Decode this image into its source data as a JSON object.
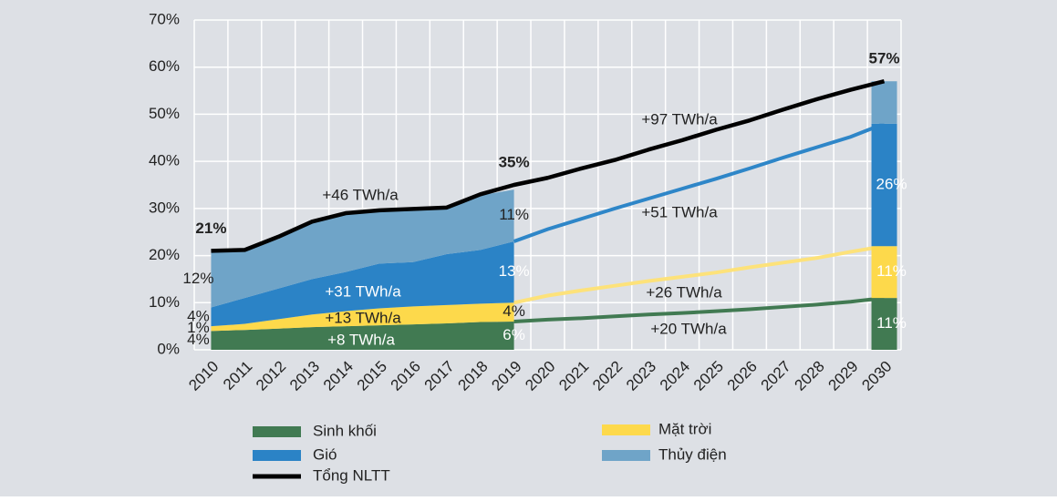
{
  "chart_data": {
    "type": "stacked_area_projection",
    "categories": [
      "2010",
      "2011",
      "2012",
      "2013",
      "2014",
      "2015",
      "2016",
      "2017",
      "2018",
      "2019",
      "2020",
      "2021",
      "2022",
      "2023",
      "2024",
      "2025",
      "2026",
      "2027",
      "2028",
      "2029",
      "2030"
    ],
    "ylim": [
      0,
      70
    ],
    "yticks": [
      {
        "value": 0,
        "label": "0%"
      },
      {
        "value": 10,
        "label": "10%"
      },
      {
        "value": 20,
        "label": "20%"
      },
      {
        "value": 30,
        "label": "30%"
      },
      {
        "value": 40,
        "label": "40%"
      },
      {
        "value": 50,
        "label": "50%"
      },
      {
        "value": 60,
        "label": "60%"
      },
      {
        "value": 70,
        "label": "70%"
      }
    ],
    "grid": true,
    "series": [
      {
        "name": "Sinh khối",
        "color": "#417a52",
        "values": [
          4,
          4.2,
          4.5,
          4.8,
          5,
          5.2,
          5.4,
          5.6,
          5.9,
          6,
          6.4,
          6.7,
          7.1,
          7.5,
          7.8,
          8.2,
          8.6,
          9.1,
          9.6,
          10.2,
          11
        ],
        "value_labels": [
          "4%",
          null,
          null,
          null,
          null,
          null,
          null,
          null,
          null,
          "6%",
          null,
          null,
          null,
          null,
          null,
          null,
          null,
          null,
          null,
          null,
          "11%"
        ]
      },
      {
        "name": "Mặt trời",
        "color": "#fdd94b",
        "values": [
          1,
          1.3,
          2,
          2.7,
          3.2,
          3.6,
          3.8,
          3.9,
          3.9,
          4,
          5.1,
          5.9,
          6.5,
          7.1,
          7.7,
          8.2,
          8.9,
          9.4,
          9.9,
          10.6,
          11
        ],
        "value_labels": [
          "1%",
          null,
          null,
          null,
          null,
          null,
          null,
          null,
          null,
          "4%",
          null,
          null,
          null,
          null,
          null,
          null,
          null,
          null,
          null,
          null,
          "11%"
        ]
      },
      {
        "name": "Gió",
        "color": "#2b83c6",
        "values": [
          4,
          5.5,
          6.5,
          7.5,
          8.3,
          9.5,
          9.4,
          10.8,
          11.4,
          13,
          14.1,
          15.2,
          16.4,
          17.5,
          18.7,
          19.9,
          21,
          22.3,
          23.5,
          24.4,
          26
        ],
        "value_labels": [
          "4%",
          null,
          null,
          null,
          null,
          null,
          null,
          null,
          null,
          "13%",
          null,
          null,
          null,
          null,
          null,
          null,
          null,
          null,
          null,
          null,
          "26%"
        ]
      },
      {
        "name": "Thủy điện",
        "color": "#6fa4c8",
        "values": [
          12,
          10.2,
          10.5,
          12,
          12.2,
          11.1,
          11.1,
          9.7,
          11.6,
          11,
          null,
          null,
          null,
          null,
          null,
          null,
          null,
          null,
          null,
          null,
          9
        ],
        "value_labels": [
          "12%",
          null,
          null,
          null,
          null,
          null,
          null,
          null,
          null,
          "11%",
          null,
          null,
          null,
          null,
          null,
          null,
          null,
          null,
          null,
          null,
          null
        ]
      }
    ],
    "total": {
      "name": "Tổng NLTT",
      "color": "#000000",
      "values": [
        21,
        21.2,
        24,
        27.2,
        29,
        29.6,
        29.9,
        30.2,
        33,
        35,
        36.5,
        38.5,
        40.3,
        42.5,
        44.5,
        46.7,
        48.7,
        51,
        53.2,
        55.2,
        57
      ],
      "value_labels": [
        "21%",
        null,
        null,
        null,
        null,
        null,
        null,
        null,
        null,
        "35%",
        null,
        null,
        null,
        null,
        null,
        null,
        null,
        null,
        null,
        null,
        "57%"
      ]
    },
    "annotations": [
      "+8 TWh/a",
      "+13 TWh/a",
      "+31 TWh/a",
      "+46 TWh/a",
      "+20 TWh/a",
      "+26 TWh/a",
      "+51 TWh/a",
      "+97 TWh/a"
    ]
  }
}
